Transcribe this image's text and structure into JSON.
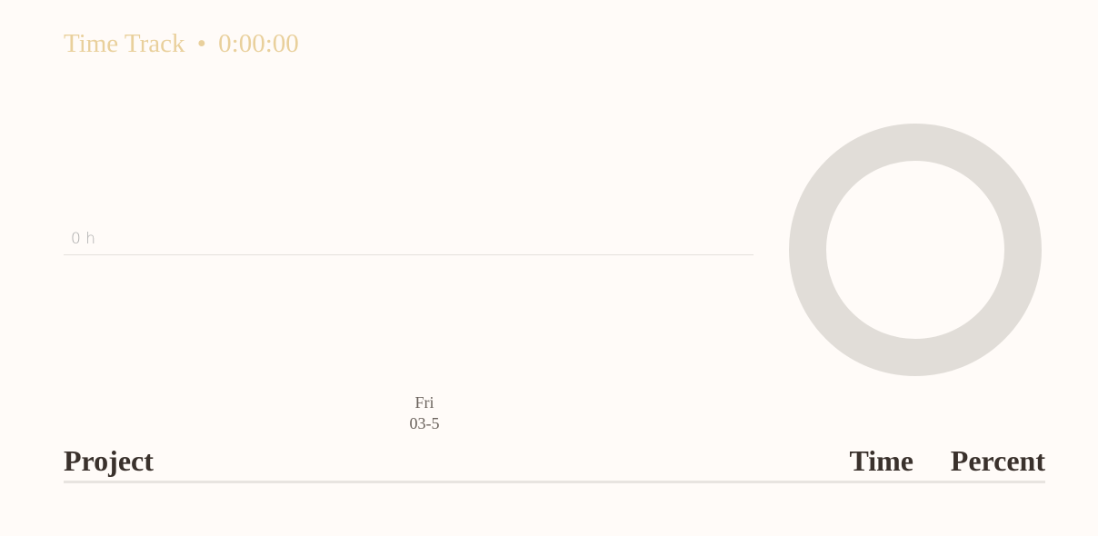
{
  "header": {
    "title": "Time Track",
    "separator": "•",
    "elapsed": "0:00:00"
  },
  "chart": {
    "y_label": "0 h",
    "day": "Fri",
    "date": "03-5"
  },
  "table": {
    "headers": [
      "Project",
      "Time",
      "Percent"
    ]
  }
}
